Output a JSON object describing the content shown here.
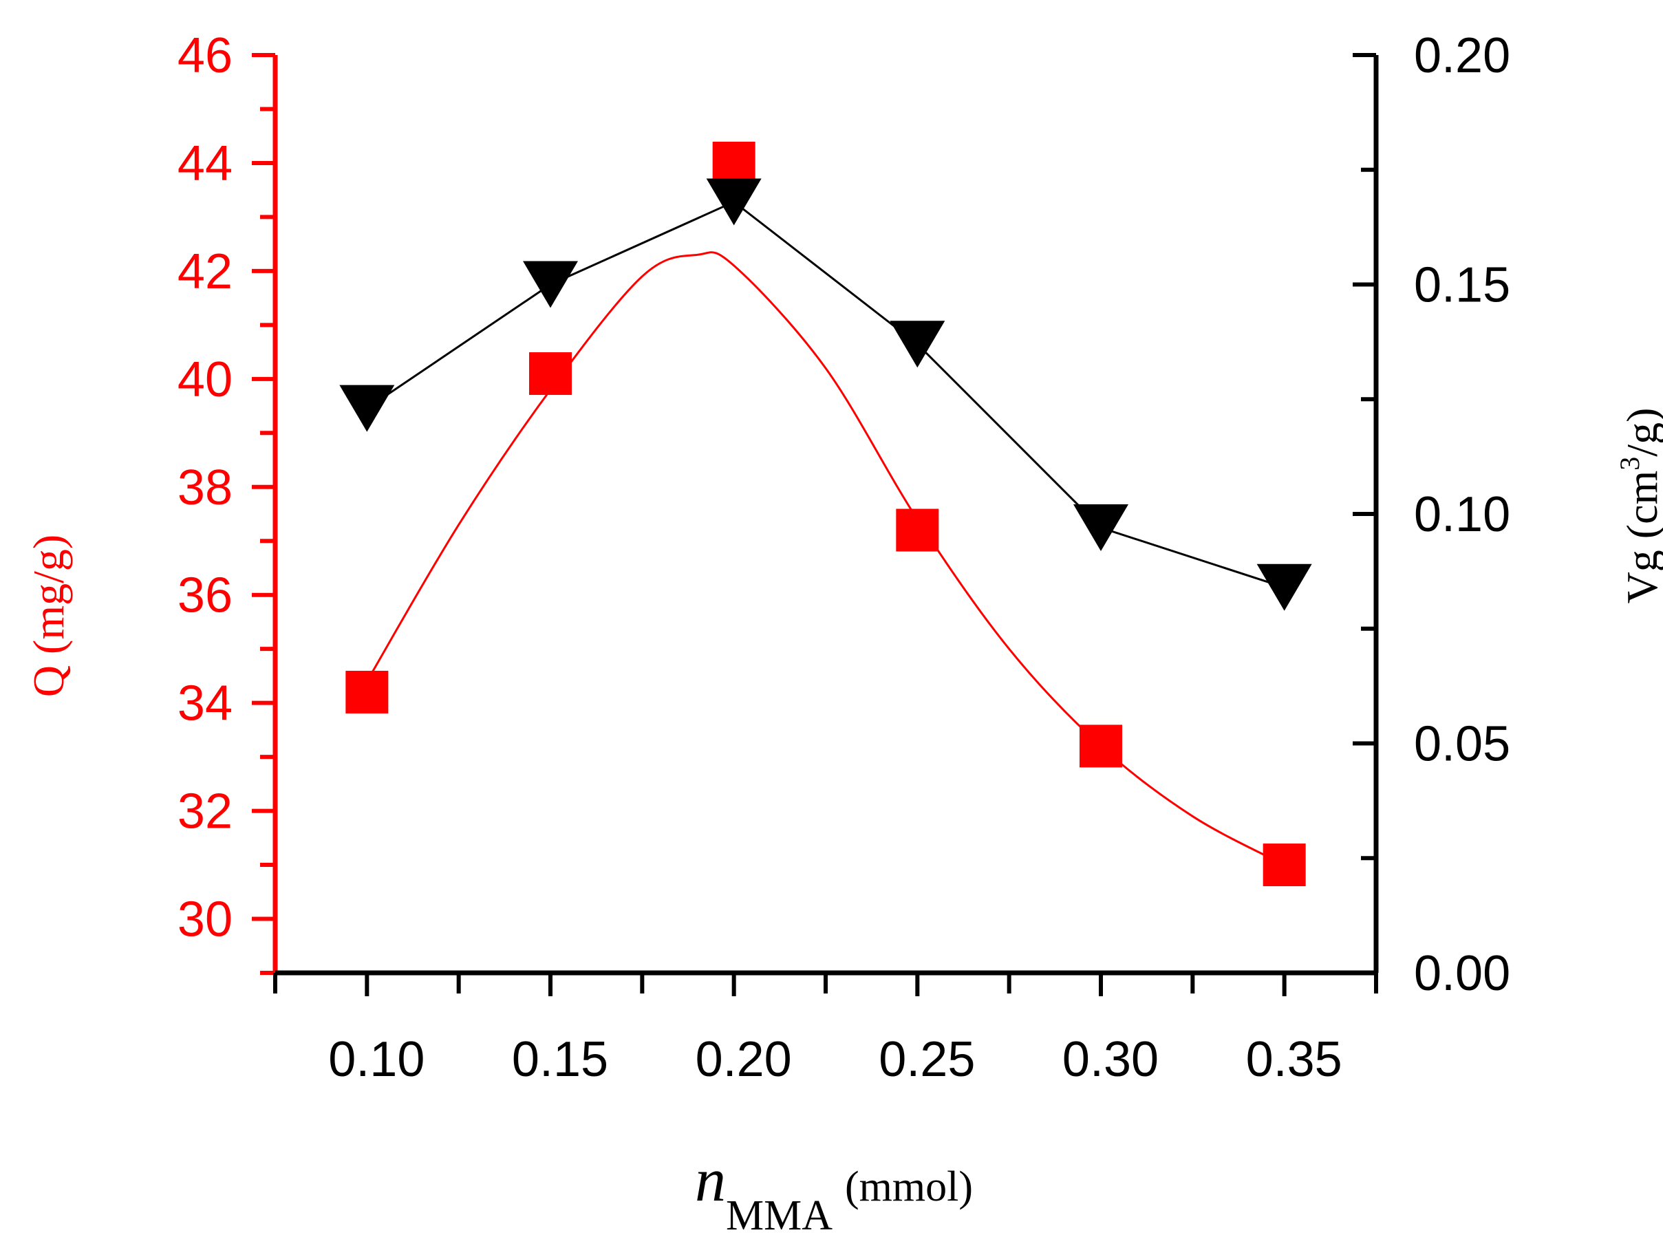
{
  "chart_data": {
    "type": "line",
    "title": "",
    "x": [
      0.1,
      0.15,
      0.2,
      0.25,
      0.3,
      0.35
    ],
    "x_tick_labels": [
      "0.10",
      "0.15",
      "0.20",
      "0.25",
      "0.30",
      "0.35"
    ],
    "xlim": [
      0.075,
      0.375
    ],
    "xlabel": {
      "main": "n",
      "subscript": "MMA",
      "unit": "(mmol)"
    },
    "y_left": {
      "label": "Q (mg/g)",
      "ylim": [
        29,
        46
      ],
      "ticks": [
        "30",
        "32",
        "34",
        "36",
        "38",
        "40",
        "42",
        "44",
        "46"
      ],
      "tick_values": [
        30,
        32,
        34,
        36,
        38,
        40,
        42,
        44,
        46
      ]
    },
    "y_right": {
      "label_prefix": "Vg (cm",
      "label_superscript": "3",
      "label_suffix": "/g)",
      "ylim": [
        0.0,
        0.2
      ],
      "ticks": [
        "0.00",
        "0.05",
        "0.10",
        "0.15",
        "0.20"
      ],
      "tick_values": [
        0.0,
        0.05,
        0.1,
        0.15,
        0.2
      ]
    },
    "series": [
      {
        "name": "Q",
        "axis": "left",
        "marker": "square",
        "color": "#ff0000",
        "line": "smooth-fit",
        "values": [
          34.2,
          40.1,
          44.0,
          37.2,
          33.2,
          31.0
        ]
      },
      {
        "name": "Vg",
        "axis": "right",
        "marker": "triangle-down",
        "color": "#000000",
        "line": "straight",
        "values": [
          0.123,
          0.15,
          0.168,
          0.137,
          0.097,
          0.084
        ]
      }
    ],
    "fit_curve": {
      "series": "Q",
      "color": "#ff0000",
      "x": [
        0.1,
        0.125,
        0.15,
        0.175,
        0.19,
        0.2,
        0.225,
        0.25,
        0.275,
        0.3,
        0.325,
        0.35
      ],
      "y": [
        34.4,
        37.3,
        39.8,
        41.9,
        42.3,
        42.1,
        40.2,
        37.4,
        35.0,
        33.2,
        31.9,
        31.0
      ]
    },
    "colors": {
      "left_axis": "#ff0000",
      "right_axis": "#000000",
      "bottom_axis": "#000000"
    }
  }
}
